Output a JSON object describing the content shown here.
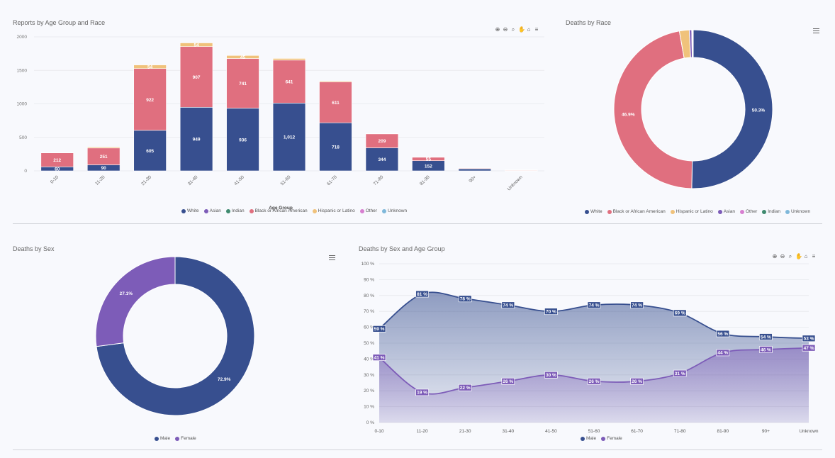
{
  "colors": {
    "White": "#374f8f",
    "Asian": "#7d5cb8",
    "Indian": "#3f8a6f",
    "Black or African American": "#e06f7f",
    "Hispanic or Latino": "#f0c27b",
    "Other": "#d77fd0",
    "Unknown": "#7fb8da",
    "Male": "#374f8f",
    "Female": "#7d5cb8"
  },
  "panels": {
    "p1": {
      "title": "Reports by Age Group and Race"
    },
    "p2": {
      "title": "Deaths by Race"
    },
    "p3": {
      "title": "Deaths by Sex"
    },
    "p4": {
      "title": "Deaths by Sex and Age Group"
    }
  },
  "toolbar_icons": [
    "zoom-in-icon",
    "zoom-out-icon",
    "magnify-icon",
    "pan-hand-icon",
    "home-icon",
    "menu-icon"
  ],
  "chart_data": [
    {
      "type": "bar",
      "stacked": true,
      "title": "Reports by Age Group and Race",
      "xlabel": "Age Group",
      "ylim": [
        0,
        2000
      ],
      "yticks": [
        0,
        500,
        1000,
        1500,
        2000
      ],
      "categories": [
        "0-10",
        "11-20",
        "21-30",
        "31-40",
        "41-50",
        "51-60",
        "61-70",
        "71-80",
        "81-90",
        "90+",
        "Unknown"
      ],
      "series": [
        {
          "name": "White",
          "values": [
            60,
            90,
            605,
            949,
            936,
            1012,
            718,
            344,
            152,
            30,
            4
          ],
          "labels": [
            "60",
            "90",
            "605",
            "949",
            "936",
            "1,012",
            "718",
            "344",
            "152",
            "",
            ""
          ]
        },
        {
          "name": "Asian",
          "values": [
            0,
            0,
            0,
            0,
            0,
            0,
            0,
            0,
            0,
            0,
            0
          ],
          "labels": []
        },
        {
          "name": "Indian",
          "values": [
            0,
            0,
            0,
            0,
            0,
            0,
            0,
            0,
            0,
            0,
            0
          ],
          "labels": []
        },
        {
          "name": "Black or African American",
          "values": [
            212,
            251,
            922,
            907,
            741,
            641,
            611,
            209,
            55,
            12,
            10
          ],
          "labels": [
            "212",
            "251",
            "922",
            "907",
            "741",
            "641",
            "611",
            "209",
            "55",
            "",
            ""
          ]
        },
        {
          "name": "Hispanic or Latino",
          "values": [
            2,
            15,
            54,
            54,
            45,
            25,
            12,
            5,
            2,
            2,
            2
          ],
          "labels": [
            "",
            "",
            "54",
            "54",
            "45",
            "",
            "",
            "",
            "",
            "",
            ""
          ]
        },
        {
          "name": "Other",
          "values": [
            0,
            0,
            0,
            0,
            0,
            0,
            0,
            0,
            0,
            0,
            0
          ],
          "labels": []
        },
        {
          "name": "Unknown",
          "values": [
            0,
            0,
            0,
            0,
            0,
            0,
            0,
            0,
            0,
            0,
            0
          ],
          "labels": []
        }
      ],
      "legend": [
        "White",
        "Asian",
        "Indian",
        "Black or African American",
        "Hispanic or Latino",
        "Other",
        "Unknown"
      ],
      "legend_position": "bottom"
    },
    {
      "type": "pie",
      "donut": true,
      "title": "Deaths by Race",
      "slices": [
        {
          "name": "White",
          "value": 50.3,
          "label": "50.3%"
        },
        {
          "name": "Black or African American",
          "value": 46.9,
          "label": "46.9%"
        },
        {
          "name": "Hispanic or Latino",
          "value": 2.0,
          "label": ""
        },
        {
          "name": "Asian",
          "value": 0.5,
          "label": ""
        },
        {
          "name": "Other",
          "value": 0.1,
          "label": ""
        },
        {
          "name": "Indian",
          "value": 0.1,
          "label": ""
        },
        {
          "name": "Unknown",
          "value": 0.1,
          "label": ""
        }
      ],
      "legend": [
        "White",
        "Black or African American",
        "Hispanic or Latino",
        "Asian",
        "Other",
        "Indian",
        "Unknown"
      ],
      "legend_position": "bottom"
    },
    {
      "type": "pie",
      "donut": true,
      "title": "Deaths by Sex",
      "slices": [
        {
          "name": "Male",
          "value": 72.9,
          "label": "72.9%"
        },
        {
          "name": "Female",
          "value": 27.1,
          "label": "27.1%"
        }
      ],
      "legend": [
        "Male",
        "Female"
      ],
      "legend_position": "bottom"
    },
    {
      "type": "area",
      "title": "Deaths by Sex and Age Group",
      "ylim": [
        0,
        100
      ],
      "yticks": [
        "0 %",
        "10 %",
        "20 %",
        "30 %",
        "40 %",
        "50 %",
        "60 %",
        "70 %",
        "80 %",
        "90 %",
        "100 %"
      ],
      "categories": [
        "0-10",
        "11-20",
        "21-30",
        "31-40",
        "41-50",
        "51-60",
        "61-70",
        "71-80",
        "81-90",
        "90+",
        "Unknown"
      ],
      "series": [
        {
          "name": "Male",
          "values": [
            59,
            81,
            78,
            74,
            70,
            74,
            74,
            69,
            56,
            54,
            53
          ],
          "labels": [
            "59 %",
            "81 %",
            "78 %",
            "74 %",
            "70 %",
            "74 %",
            "74 %",
            "69 %",
            "56 %",
            "54 %",
            "53 %"
          ]
        },
        {
          "name": "Female",
          "values": [
            41,
            19,
            22,
            26,
            30,
            26,
            26,
            31,
            44,
            46,
            47
          ],
          "labels": [
            "41 %",
            "19 %",
            "22 %",
            "26 %",
            "30 %",
            "26 %",
            "26 %",
            "31 %",
            "44 %",
            "46 %",
            "47 %"
          ]
        }
      ],
      "legend": [
        "Male",
        "Female"
      ],
      "legend_position": "bottom"
    }
  ]
}
